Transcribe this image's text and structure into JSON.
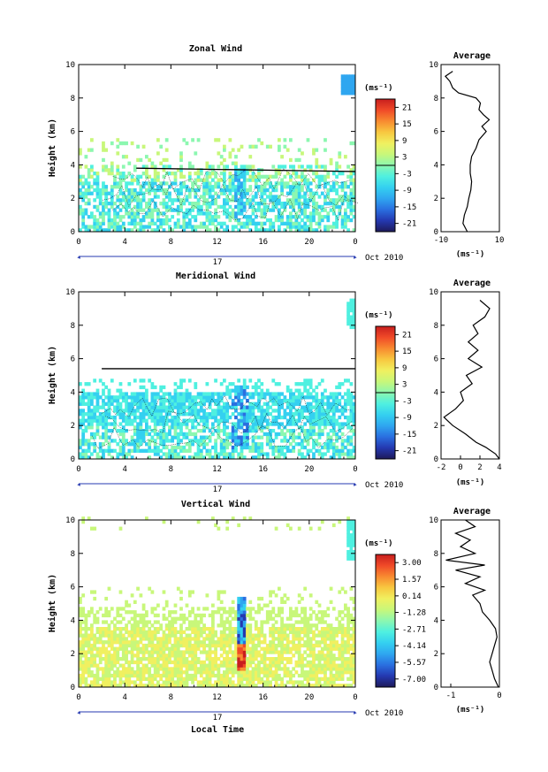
{
  "colors": {
    "colorbar": [
      "#1e1a5a",
      "#2438b0",
      "#2a6fe0",
      "#2fa6f0",
      "#34d0f0",
      "#4ff0e0",
      "#8cf7b0",
      "#c8f77a",
      "#f0f060",
      "#f8c840",
      "#f88a30",
      "#f04a28",
      "#c81e1e"
    ],
    "line": "#000000"
  },
  "chart_data": [
    {
      "type": "heatmap",
      "title": "Zonal Wind",
      "ylabel": "Height (km)",
      "xlabel": "",
      "xlim": [
        0,
        24
      ],
      "ylim": [
        0,
        10
      ],
      "x_ticks": [
        "0",
        "4",
        "8",
        "12",
        "16",
        "20",
        "0"
      ],
      "y_ticks": [
        "0",
        "2",
        "4",
        "6",
        "8",
        "10"
      ],
      "date_day": "17",
      "date_label": "Oct 2010",
      "colorbar": {
        "unit": "(ms⁻¹)",
        "ticks": [
          "21",
          "15",
          "9",
          "3",
          "-3",
          "-9",
          "-15",
          "-21"
        ],
        "range": [
          -24,
          24
        ]
      },
      "cloud_line": {
        "x": [
          5,
          24
        ],
        "y": [
          3.8,
          3.6
        ]
      },
      "average": {
        "title": "Average",
        "unit": "(ms⁻¹)",
        "xlim": [
          -10,
          10
        ],
        "x_ticks": [
          "-10",
          "10"
        ],
        "y_ticks": [
          "0",
          "2",
          "4",
          "6",
          "8",
          "10"
        ],
        "height": [
          0.0,
          0.5,
          1.0,
          1.5,
          2.0,
          2.5,
          3.0,
          3.5,
          4.0,
          4.5,
          5.0,
          5.5,
          6.0,
          6.3,
          6.7,
          7.0,
          7.3,
          7.7,
          8.0,
          8.3,
          8.6,
          9.0,
          9.3,
          9.6
        ],
        "speed": [
          -1.0,
          -2.5,
          -2.0,
          -1.0,
          -0.5,
          0.2,
          0.5,
          0.0,
          0.0,
          0.5,
          2.0,
          3.0,
          5.5,
          4.0,
          6.5,
          4.5,
          3.0,
          3.5,
          2.0,
          -4.0,
          -6.0,
          -7.0,
          -8.5,
          -6.0
        ]
      }
    },
    {
      "type": "heatmap",
      "title": "Meridional Wind",
      "ylabel": "Height (km)",
      "xlabel": "",
      "xlim": [
        0,
        24
      ],
      "ylim": [
        0,
        10
      ],
      "x_ticks": [
        "0",
        "4",
        "8",
        "12",
        "16",
        "20",
        "0"
      ],
      "y_ticks": [
        "0",
        "2",
        "4",
        "6",
        "8",
        "10"
      ],
      "date_day": "17",
      "date_label": "Oct 2010",
      "colorbar": {
        "unit": "(ms⁻¹)",
        "ticks": [
          "21",
          "15",
          "9",
          "3",
          "-3",
          "-9",
          "-15",
          "-21"
        ],
        "range": [
          -24,
          24
        ]
      },
      "cloud_line": {
        "x": [
          2,
          24
        ],
        "y": [
          5.4,
          5.4
        ]
      },
      "average": {
        "title": "Average",
        "unit": "(ms⁻¹)",
        "xlim": [
          -2,
          4
        ],
        "x_ticks": [
          "-2",
          "0",
          "2",
          "4"
        ],
        "y_ticks": [
          "0",
          "2",
          "4",
          "6",
          "8",
          "10"
        ],
        "height": [
          0.0,
          0.3,
          0.7,
          1.0,
          1.5,
          2.0,
          2.5,
          3.0,
          3.5,
          4.0,
          4.5,
          5.0,
          5.5,
          6.0,
          6.5,
          7.0,
          7.5,
          8.0,
          8.5,
          9.0,
          9.5
        ],
        "speed": [
          4.0,
          3.6,
          2.6,
          1.6,
          0.5,
          -0.8,
          -1.7,
          -0.5,
          0.3,
          0.0,
          1.2,
          0.6,
          2.2,
          0.8,
          1.8,
          0.8,
          1.8,
          1.3,
          2.5,
          3.0,
          2.0
        ]
      }
    },
    {
      "type": "heatmap",
      "title": "Vertical Wind",
      "ylabel": "Height (km)",
      "xlabel": "Local Time",
      "xlim": [
        0,
        24
      ],
      "ylim": [
        0,
        10
      ],
      "x_ticks": [
        "0",
        "4",
        "8",
        "12",
        "16",
        "20",
        "0"
      ],
      "y_ticks": [
        "0",
        "2",
        "4",
        "6",
        "8",
        "10"
      ],
      "date_day": "17",
      "date_label": "Oct 2010",
      "colorbar": {
        "unit": "(ms⁻¹)",
        "ticks": [
          "3.00",
          "1.57",
          "0.14",
          "-1.28",
          "-2.71",
          "-4.14",
          "-5.57",
          "-7.00"
        ],
        "range": [
          -7.7,
          3.7
        ]
      },
      "average": {
        "title": "Average",
        "unit": "(ms⁻¹)",
        "xlim": [
          -1.2,
          0
        ],
        "x_ticks": [
          "-1",
          "0"
        ],
        "y_ticks": [
          "0",
          "2",
          "4",
          "6",
          "8",
          "10"
        ],
        "height": [
          0.0,
          0.5,
          1.0,
          1.5,
          2.0,
          2.5,
          3.0,
          3.5,
          4.0,
          4.5,
          5.0,
          5.5,
          5.8,
          6.2,
          6.6,
          7.0,
          7.3,
          7.6,
          8.0,
          8.4,
          8.8,
          9.2,
          9.6,
          10.0
        ],
        "speed": [
          -0.02,
          -0.1,
          -0.15,
          -0.2,
          -0.15,
          -0.1,
          -0.05,
          -0.08,
          -0.2,
          -0.35,
          -0.4,
          -0.55,
          -0.3,
          -0.7,
          -0.4,
          -0.9,
          -0.3,
          -1.1,
          -0.5,
          -0.8,
          -0.6,
          -0.9,
          -0.5,
          -0.7
        ]
      }
    }
  ]
}
